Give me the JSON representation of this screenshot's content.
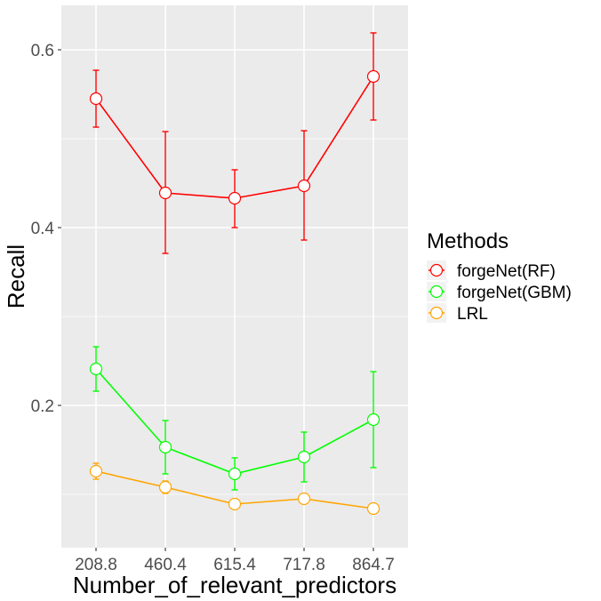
{
  "chart_data": {
    "type": "line",
    "title": "",
    "xlabel": "Number_of_relevant_predictors",
    "ylabel": "Recall",
    "categories": [
      "208.8",
      "460.4",
      "615.4",
      "717.8",
      "864.7"
    ],
    "ylim": [
      0.04,
      0.65
    ],
    "y_ticks": [
      0.2,
      0.4,
      0.6
    ],
    "y_tick_labels": [
      "0.2",
      "0.4",
      "0.6"
    ],
    "grid": true,
    "legend": {
      "title": "Methods",
      "position": "right"
    },
    "series": [
      {
        "name": "forgeNet(RF)",
        "color": "#ff0000",
        "values": [
          0.545,
          0.439,
          0.433,
          0.447,
          0.57
        ],
        "err_low": [
          0.513,
          0.371,
          0.4,
          0.386,
          0.521
        ],
        "err_high": [
          0.577,
          0.508,
          0.465,
          0.509,
          0.619
        ]
      },
      {
        "name": "forgeNet(GBM)",
        "color": "#00ff00",
        "values": [
          0.241,
          0.153,
          0.123,
          0.142,
          0.184
        ],
        "err_low": [
          0.216,
          0.123,
          0.105,
          0.114,
          0.13
        ],
        "err_high": [
          0.266,
          0.183,
          0.141,
          0.17,
          0.238
        ]
      },
      {
        "name": "LRL",
        "color": "#ffa500",
        "values": [
          0.126,
          0.108,
          0.089,
          0.095,
          0.084
        ],
        "err_low": [
          0.117,
          0.101,
          0.089,
          0.095,
          0.084
        ],
        "err_high": [
          0.135,
          0.115,
          0.089,
          0.095,
          0.084
        ]
      }
    ]
  }
}
